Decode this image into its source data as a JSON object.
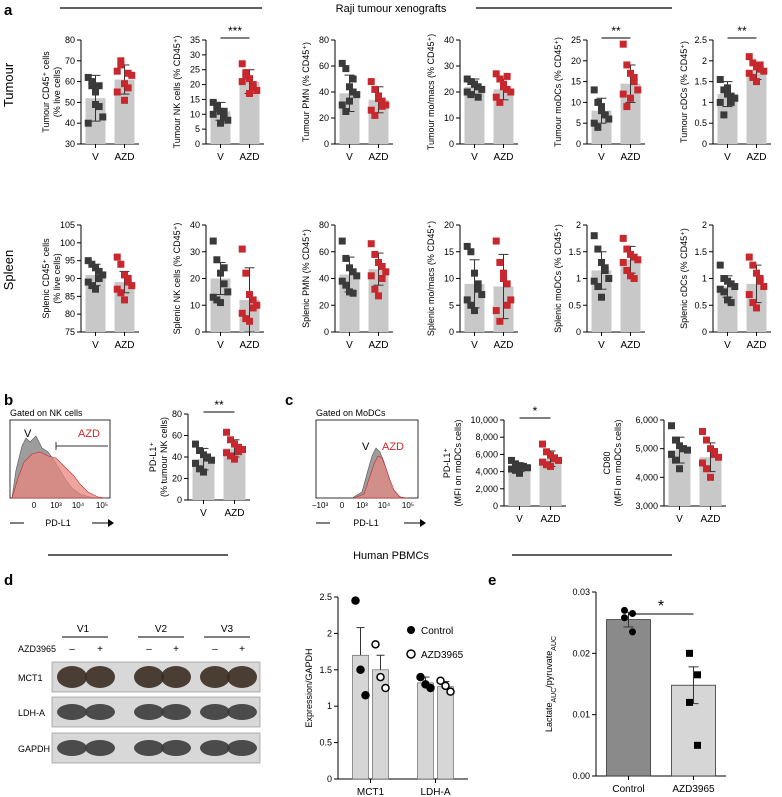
{
  "colors": {
    "bar": "#c8c8c8",
    "bar_dark": "#8a8a8a",
    "bar_light": "#d6d6d6",
    "v_marker": "#3a3a3a",
    "azd_marker": "#c8272d",
    "azd_text": "#d6262c",
    "hist_grey": "#8c8c8c",
    "hist_red": "#e8877f"
  },
  "panel_letters": [
    "a",
    "b",
    "c",
    "d",
    "e"
  ],
  "headers": {
    "raji": "Raji tumour xenografts",
    "pbmc": "Human PBMCs"
  },
  "row_labels": [
    "Tumour",
    "Spleen"
  ],
  "hist_b": {
    "gate": "Gated on NK cells",
    "v": "V",
    "azd": "AZD",
    "xlabel": "PD-L1",
    "ticks": [
      "0",
      "10³",
      "10⁴",
      "10⁵"
    ]
  },
  "hist_c": {
    "gate": "Gated on MoDCs",
    "v": "V",
    "azd": "AZD",
    "xlabel": "PD-L1",
    "ticks": [
      "−10³",
      "0",
      "10³",
      "10⁴",
      "10⁵"
    ]
  },
  "blot": {
    "lanes": [
      "V1",
      "V2",
      "V3"
    ],
    "treatment_label": "AZD3965",
    "signs": [
      "–",
      "+",
      "–",
      "+",
      "–",
      "+"
    ],
    "rows": [
      "MCT1",
      "LDH-A",
      "GAPDH"
    ]
  },
  "chart_data": [
    {
      "id": "a1",
      "type": "bar",
      "ylabel": [
        "Tumour CD45⁺ cells",
        "(% live cells)"
      ],
      "ylim": [
        30,
        80
      ],
      "ticks": [
        30,
        40,
        50,
        60,
        70,
        80
      ],
      "categories": [
        "V",
        "AZD"
      ],
      "values": [
        52,
        61
      ],
      "errors": [
        11,
        7
      ],
      "points": [
        [
          62,
          58,
          55,
          48,
          43,
          40,
          60,
          49,
          58
        ],
        [
          65,
          70,
          59,
          57,
          63,
          55,
          68,
          51,
          64
        ]
      ],
      "sig": ""
    },
    {
      "id": "a2",
      "type": "bar",
      "ylabel": [
        "Tumour NK cells (% CD45⁺)"
      ],
      "ylim": [
        0,
        35
      ],
      "ticks": [
        0,
        5,
        10,
        15,
        20,
        25,
        30,
        35
      ],
      "categories": [
        "V",
        "AZD"
      ],
      "values": [
        11,
        21
      ],
      "errors": [
        3,
        4
      ],
      "points": [
        [
          14,
          12,
          11,
          9,
          8,
          10,
          13,
          7,
          11
        ],
        [
          27,
          24,
          22,
          20,
          18,
          21,
          23,
          17,
          19
        ]
      ],
      "sig": "***"
    },
    {
      "id": "a3",
      "type": "bar",
      "ylabel": [
        "Tumour PMN (% CD45⁺)"
      ],
      "ylim": [
        0,
        80
      ],
      "ticks": [
        0,
        20,
        40,
        60,
        80
      ],
      "categories": [
        "V",
        "AZD"
      ],
      "values": [
        39,
        34
      ],
      "errors": [
        14,
        10
      ],
      "points": [
        [
          62,
          58,
          44,
          40,
          38,
          30,
          25,
          33,
          50
        ],
        [
          48,
          42,
          37,
          33,
          30,
          26,
          22,
          35,
          29
        ]
      ],
      "sig": ""
    },
    {
      "id": "a4",
      "type": "bar",
      "ylabel": [
        "Tumour mo/macs (% CD45⁺)"
      ],
      "ylim": [
        0,
        40
      ],
      "ticks": [
        0,
        10,
        20,
        30,
        40
      ],
      "categories": [
        "V",
        "AZD"
      ],
      "values": [
        22,
        21
      ],
      "errors": [
        3,
        4
      ],
      "points": [
        [
          25,
          24,
          23,
          22,
          21,
          20,
          19,
          23,
          18
        ],
        [
          27,
          25,
          23,
          21,
          20,
          18,
          16,
          22,
          26
        ]
      ],
      "sig": ""
    },
    {
      "id": "a5",
      "type": "bar",
      "ylabel": [
        "Tumour moDCs (% CD45⁺)"
      ],
      "ylim": [
        0,
        25
      ],
      "ticks": [
        0,
        5,
        10,
        15,
        20,
        25
      ],
      "categories": [
        "V",
        "AZD"
      ],
      "values": [
        8,
        14.5
      ],
      "errors": [
        3,
        4.5
      ],
      "points": [
        [
          13,
          10,
          8,
          7,
          6,
          5,
          4,
          9,
          7
        ],
        [
          24,
          19,
          17,
          15,
          13,
          12,
          9,
          11,
          16
        ]
      ],
      "sig": "**"
    },
    {
      "id": "a6",
      "type": "bar",
      "ylabel": [
        "Tumour cDCs (% CD45⁺)"
      ],
      "ylim": [
        0,
        2.5
      ],
      "ticks": [
        0,
        0.5,
        1.0,
        1.5,
        2.0,
        2.5
      ],
      "categories": [
        "V",
        "AZD"
      ],
      "values": [
        1.2,
        1.75
      ],
      "errors": [
        0.3,
        0.2
      ],
      "points": [
        [
          1.55,
          1.3,
          1.2,
          1.15,
          1.1,
          1.0,
          0.7,
          1.35,
          1.0
        ],
        [
          2.1,
          1.95,
          1.85,
          1.8,
          1.75,
          1.7,
          1.6,
          1.5,
          1.9
        ]
      ],
      "sig": "**"
    },
    {
      "id": "a7",
      "type": "bar",
      "ylabel": [
        "Splenic CD45⁺ cells",
        "(% live cells)"
      ],
      "ylim": [
        75,
        105
      ],
      "ticks": [
        75,
        80,
        85,
        90,
        95,
        100,
        105
      ],
      "categories": [
        "V",
        "AZD"
      ],
      "values": [
        91,
        89
      ],
      "errors": [
        3,
        3
      ],
      "points": [
        [
          95,
          94,
          93,
          92,
          91,
          89,
          88,
          87,
          90
        ],
        [
          96,
          94,
          91,
          89,
          88,
          87,
          86,
          84,
          90
        ]
      ],
      "sig": ""
    },
    {
      "id": "a8",
      "type": "bar",
      "ylabel": [
        "Splenic NK cells (% CD45⁺)"
      ],
      "ylim": [
        0,
        40
      ],
      "ticks": [
        0,
        10,
        20,
        30,
        40
      ],
      "categories": [
        "V",
        "AZD"
      ],
      "values": [
        20,
        12
      ],
      "errors": [
        6,
        12
      ],
      "points": [
        [
          34,
          27,
          22,
          18,
          15,
          13,
          12,
          11,
          24
        ],
        [
          31,
          22,
          14,
          12,
          10,
          7,
          5,
          4,
          9
        ]
      ],
      "sig": ""
    },
    {
      "id": "a9",
      "type": "bar",
      "ylabel": [
        "Splenic PMN (% CD45⁺)"
      ],
      "ylim": [
        0,
        80
      ],
      "ticks": [
        0,
        20,
        40,
        60,
        80
      ],
      "categories": [
        "V",
        "AZD"
      ],
      "values": [
        43,
        47
      ],
      "errors": [
        13,
        12
      ],
      "points": [
        [
          68,
          55,
          48,
          45,
          42,
          38,
          35,
          30,
          29
        ],
        [
          66,
          58,
          52,
          49,
          45,
          42,
          32,
          27,
          40
        ]
      ],
      "sig": ""
    },
    {
      "id": "a10",
      "type": "bar",
      "ylabel": [
        "Splenic mo/macs (% CD45⁺)"
      ],
      "ylim": [
        0,
        20
      ],
      "ticks": [
        0,
        5,
        10,
        15,
        20
      ],
      "categories": [
        "V",
        "AZD"
      ],
      "values": [
        9,
        8.5
      ],
      "errors": [
        4.5,
        6
      ],
      "points": [
        [
          16,
          15,
          11,
          9,
          7,
          6,
          5,
          4,
          8
        ],
        [
          17,
          13,
          11,
          9,
          6,
          4,
          2,
          10,
          5
        ]
      ],
      "sig": ""
    },
    {
      "id": "a11",
      "type": "bar",
      "ylabel": [
        "Splenic moDCs (% CD45⁺)"
      ],
      "ylim": [
        0,
        2.0
      ],
      "ticks": [
        0,
        0.5,
        1.0,
        1.5,
        2.0
      ],
      "categories": [
        "V",
        "AZD"
      ],
      "values": [
        1.15,
        1.35
      ],
      "errors": [
        0.35,
        0.25
      ],
      "points": [
        [
          1.8,
          1.55,
          1.3,
          1.15,
          1.0,
          0.95,
          0.85,
          0.65,
          1.2
        ],
        [
          1.75,
          1.55,
          1.45,
          1.4,
          1.35,
          1.3,
          1.15,
          1.05,
          1.0
        ]
      ],
      "sig": ""
    },
    {
      "id": "a12",
      "type": "bar",
      "ylabel": [
        "Splenic cDCs (% CD45⁺)"
      ],
      "ylim": [
        0,
        2.0
      ],
      "ticks": [
        0,
        0.5,
        1.0,
        1.5,
        2.0
      ],
      "categories": [
        "V",
        "AZD"
      ],
      "values": [
        0.85,
        0.9
      ],
      "errors": [
        0.2,
        0.35
      ],
      "points": [
        [
          1.25,
          1.0,
          0.95,
          0.9,
          0.85,
          0.8,
          0.75,
          0.6,
          0.55
        ],
        [
          1.4,
          1.25,
          1.1,
          0.95,
          0.85,
          0.7,
          0.55,
          0.45,
          1.0
        ]
      ],
      "sig": ""
    },
    {
      "id": "b",
      "type": "bar",
      "ylabel": [
        "PD-L1⁺",
        "(% tumour NK cells)"
      ],
      "ylim": [
        0,
        80
      ],
      "ticks": [
        0,
        20,
        40,
        60,
        80
      ],
      "categories": [
        "V",
        "AZD"
      ],
      "values": [
        38,
        48
      ],
      "errors": [
        10,
        8
      ],
      "points": [
        [
          52,
          46,
          42,
          40,
          37,
          34,
          29,
          26,
          39
        ],
        [
          63,
          56,
          52,
          49,
          47,
          44,
          41,
          38,
          45
        ]
      ],
      "sig": "**"
    },
    {
      "id": "c1",
      "type": "bar",
      "ylabel": [
        "PD-L1⁺",
        "(MFI on moDCs cells)"
      ],
      "ylim": [
        0,
        10000
      ],
      "ticks": [
        0,
        2000,
        4000,
        6000,
        8000,
        10000
      ],
      "categories": [
        "V",
        "AZD"
      ],
      "values": [
        4500,
        5500
      ],
      "errors": [
        500,
        900
      ],
      "points": [
        [
          5300,
          4900,
          4700,
          4600,
          4450,
          4300,
          4150,
          3800,
          4500
        ],
        [
          7200,
          6300,
          5900,
          5600,
          5300,
          5100,
          4800,
          4600,
          5500
        ]
      ],
      "sig": "*"
    },
    {
      "id": "c2",
      "type": "bar",
      "ylabel": [
        "CD80",
        "(MFI on moDCs cells)"
      ],
      "ylim": [
        3000,
        6000
      ],
      "ticks": [
        3000,
        4000,
        5000,
        6000
      ],
      "categories": [
        "V",
        "AZD"
      ],
      "values": [
        4950,
        4700
      ],
      "errors": [
        450,
        500
      ],
      "points": [
        [
          5800,
          5300,
          5100,
          5000,
          4950,
          4800,
          4600,
          4300,
          5000
        ],
        [
          5600,
          5300,
          5000,
          4800,
          4700,
          4500,
          4300,
          4000,
          4900
        ]
      ],
      "sig": ""
    },
    {
      "id": "d",
      "type": "bar",
      "ylabel": [
        "Expression/GAPDH"
      ],
      "ylim": [
        0,
        2.5
      ],
      "ticks": [
        0,
        0.5,
        1.0,
        1.5,
        2.0,
        2.5
      ],
      "categories": [
        "MCT1",
        "LDH-A"
      ],
      "series": [
        {
          "name": "Control",
          "values": [
            1.7,
            1.32
          ],
          "errors": [
            0.38,
            0.08
          ],
          "points": [
            [
              2.45,
              1.5,
              1.15
            ],
            [
              1.4,
              1.3,
              1.25
            ]
          ]
        },
        {
          "name": "AZD3965",
          "values": [
            1.5,
            1.27
          ],
          "errors": [
            0.2,
            0.07
          ],
          "points": [
            [
              1.85,
              1.4,
              1.25
            ],
            [
              1.35,
              1.28,
              1.2
            ]
          ]
        }
      ],
      "sig": ""
    },
    {
      "id": "e",
      "type": "bar",
      "ylabel": [
        "Lactate",
        "AUC",
        "/pyruvate",
        "AUC"
      ],
      "ylim": [
        0,
        0.03
      ],
      "ticks": [
        "0.00",
        "0.01",
        "0.02",
        "0.03"
      ],
      "categories": [
        "Control",
        "AZD3965"
      ],
      "values": [
        0.0255,
        0.0148
      ],
      "errors": [
        0.0012,
        0.003
      ],
      "points": [
        [
          0.027,
          0.0265,
          0.0258,
          0.0235
        ],
        [
          0.02,
          0.0165,
          0.012,
          0.005
        ]
      ],
      "sig": "*"
    }
  ]
}
